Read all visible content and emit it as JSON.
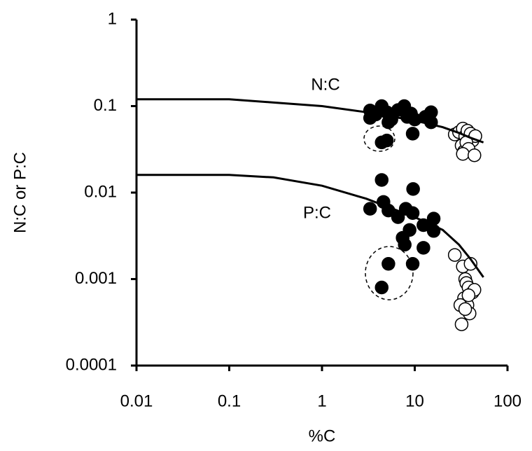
{
  "chart_data": {
    "type": "scatter",
    "x_label": "%C",
    "y_label": "N:C or P:C",
    "xscale": "log",
    "yscale": "log",
    "xlim": [
      0.01,
      100
    ],
    "ylim": [
      0.0001,
      1
    ],
    "xticks": [
      0.01,
      0.1,
      1,
      10,
      100
    ],
    "yticks": [
      0.0001,
      0.001,
      0.01,
      0.1,
      1
    ],
    "grid": false,
    "annotations": [
      "N:C",
      "P:C"
    ],
    "series": [
      {
        "mode": "line",
        "color": "#000000",
        "x": [
          0.01,
          0.1,
          0.3,
          1,
          3,
          10,
          20,
          30,
          40,
          55
        ],
        "y": [
          0.12,
          0.12,
          0.11,
          0.1,
          0.085,
          0.068,
          0.057,
          0.049,
          0.043,
          0.038
        ]
      },
      {
        "mode": "line",
        "color": "#000000",
        "x": [
          0.01,
          0.1,
          0.3,
          1,
          3,
          10,
          20,
          30,
          40,
          55
        ],
        "y": [
          0.016,
          0.016,
          0.015,
          0.012,
          0.0085,
          0.0052,
          0.0037,
          0.0025,
          0.0017,
          0.00105
        ]
      },
      {
        "mode": "markers",
        "marker": "filled",
        "color": "#000000",
        "x": [
          3.3,
          3.8,
          4.4,
          5.0,
          5.6,
          6.6,
          7.7,
          8.3,
          9.1,
          10,
          5.2,
          3.3,
          9.5,
          13,
          15,
          15,
          4.4,
          5.0
        ],
        "y": [
          0.089,
          0.08,
          0.1,
          0.085,
          0.07,
          0.09,
          0.1,
          0.075,
          0.082,
          0.07,
          0.065,
          0.073,
          0.048,
          0.075,
          0.085,
          0.065,
          0.038,
          0.04
        ]
      },
      {
        "mode": "markers",
        "marker": "open",
        "color": "#000000",
        "x": [
          27,
          30,
          33,
          35,
          37,
          40,
          42,
          45,
          32,
          34,
          36,
          38,
          33,
          44
        ],
        "y": [
          0.047,
          0.05,
          0.055,
          0.045,
          0.052,
          0.048,
          0.04,
          0.045,
          0.035,
          0.03,
          0.038,
          0.032,
          0.028,
          0.027
        ]
      },
      {
        "mode": "markers",
        "marker": "filled",
        "color": "#000000",
        "x": [
          4.4,
          9.6,
          3.3,
          4.6,
          5.2,
          8,
          9.5,
          6.6,
          7.4,
          7.8,
          5.2,
          4.4,
          9.5,
          12.4,
          16,
          16,
          12.4,
          8.8
        ],
        "y": [
          0.014,
          0.011,
          0.0065,
          0.0078,
          0.0062,
          0.0065,
          0.0058,
          0.0052,
          0.003,
          0.0025,
          0.0015,
          0.0008,
          0.0015,
          0.0023,
          0.0036,
          0.005,
          0.0042,
          0.0037
        ]
      },
      {
        "mode": "markers",
        "marker": "open",
        "color": "#000000",
        "x": [
          27,
          33,
          40,
          35,
          36,
          38,
          42,
          44,
          34,
          37,
          39,
          31,
          35,
          38,
          32
        ],
        "y": [
          0.0019,
          0.0014,
          0.0015,
          0.001,
          0.0009,
          0.0008,
          0.0007,
          0.00075,
          0.0006,
          0.0005,
          0.0004,
          0.0005,
          0.00045,
          0.00065,
          0.0003
        ]
      }
    ]
  }
}
